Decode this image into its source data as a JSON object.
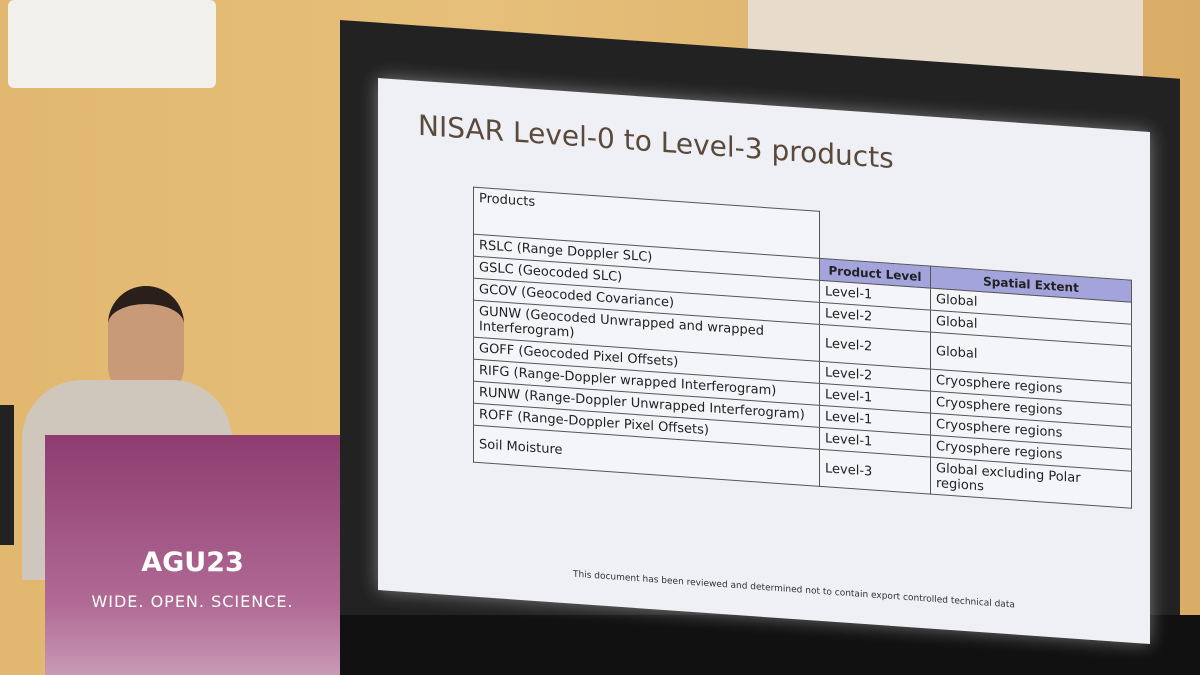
{
  "slide": {
    "title": "NISAR Level-0 to Level-3 products",
    "table": {
      "header": [
        "Products",
        "Product Level",
        "Spatial Extent"
      ],
      "rows": [
        [
          "RSLC (Range Doppler SLC)"
        ],
        [
          "GSLC (Geocoded SLC)",
          "Level-1",
          "Global"
        ],
        [
          "GCOV (Geocoded Covariance)",
          "Level-2",
          "Global"
        ],
        [
          "GUNW (Geocoded Unwrapped and wrapped Interferogram)",
          "Level-2",
          "Global"
        ],
        [
          "GOFF (Geocoded Pixel Offsets)",
          "Level-2",
          "Cryosphere regions"
        ],
        [
          "RIFG (Range-Doppler wrapped Interferogram)",
          "Level-1",
          "Cryosphere regions"
        ],
        [
          "RUNW (Range-Doppler Unwrapped Interferogram)",
          "Level-1",
          "Cryosphere regions"
        ],
        [
          "ROFF (Range-Doppler Pixel Offsets)",
          "Level-1",
          "Cryosphere regions"
        ],
        [
          "Soil Moisture",
          "Level-3",
          "Global excluding Polar regions"
        ]
      ]
    },
    "footer": "This document has been reviewed and determined not to contain export controlled technical data"
  },
  "podium": {
    "logo": "AGU23",
    "tagline": "WIDE. OPEN. SCIENCE."
  }
}
